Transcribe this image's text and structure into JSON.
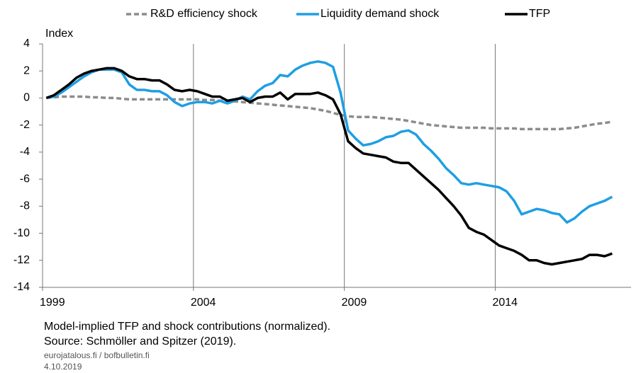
{
  "chart_data": {
    "type": "line",
    "ylabel": "Index",
    "caption": "Model-implied TFP and shock contributions (normalized).",
    "source": "Source: Schmöller and Spitzer (2019).",
    "footer": [
      "eurojatalous.fi / bofbulletin.fi",
      "4.10.2019"
    ],
    "x": [
      1999.125,
      1999.375,
      1999.625,
      1999.875,
      2000.125,
      2000.375,
      2000.625,
      2000.875,
      2001.125,
      2001.375,
      2001.625,
      2001.875,
      2002.125,
      2002.375,
      2002.625,
      2002.875,
      2003.125,
      2003.375,
      2003.625,
      2003.875,
      2004.125,
      2004.375,
      2004.625,
      2004.875,
      2005.125,
      2005.375,
      2005.625,
      2005.875,
      2006.125,
      2006.375,
      2006.625,
      2006.875,
      2007.125,
      2007.375,
      2007.625,
      2007.875,
      2008.125,
      2008.375,
      2008.625,
      2008.875,
      2009.125,
      2009.375,
      2009.625,
      2009.875,
      2010.125,
      2010.375,
      2010.625,
      2010.875,
      2011.125,
      2011.375,
      2011.625,
      2011.875,
      2012.125,
      2012.375,
      2012.625,
      2012.875,
      2013.125,
      2013.375,
      2013.625,
      2013.875,
      2014.125,
      2014.375,
      2014.625,
      2014.875,
      2015.125,
      2015.375,
      2015.625,
      2015.875,
      2016.125,
      2016.375,
      2016.625,
      2016.875,
      2017.125,
      2017.375,
      2017.625,
      2017.875
    ],
    "series": [
      {
        "name": "R&D efficiency shock",
        "color": "#8c8c8c",
        "style": "dashed",
        "values": [
          0,
          0.05,
          0.1,
          0.1,
          0.1,
          0.1,
          0.05,
          0.05,
          0,
          0,
          -0.05,
          -0.1,
          -0.1,
          -0.1,
          -0.1,
          -0.1,
          -0.1,
          -0.1,
          -0.1,
          -0.1,
          -0.1,
          -0.15,
          -0.15,
          -0.2,
          -0.2,
          -0.25,
          -0.3,
          -0.35,
          -0.4,
          -0.45,
          -0.5,
          -0.55,
          -0.6,
          -0.65,
          -0.7,
          -0.75,
          -0.85,
          -0.95,
          -1.1,
          -1.25,
          -1.35,
          -1.4,
          -1.4,
          -1.4,
          -1.45,
          -1.5,
          -1.55,
          -1.6,
          -1.7,
          -1.8,
          -1.9,
          -2.0,
          -2.05,
          -2.1,
          -2.15,
          -2.2,
          -2.2,
          -2.2,
          -2.2,
          -2.25,
          -2.25,
          -2.25,
          -2.25,
          -2.3,
          -2.3,
          -2.3,
          -2.3,
          -2.3,
          -2.3,
          -2.25,
          -2.2,
          -2.1,
          -2.0,
          -1.9,
          -1.85,
          -1.75
        ]
      },
      {
        "name": "Liquidity demand shock",
        "color": "#1e9fe3",
        "style": "solid",
        "values": [
          0,
          0.1,
          0.4,
          0.8,
          1.2,
          1.6,
          1.9,
          2.1,
          2.1,
          2.1,
          1.9,
          1.0,
          0.6,
          0.6,
          0.5,
          0.5,
          0.2,
          -0.3,
          -0.6,
          -0.4,
          -0.3,
          -0.3,
          -0.4,
          -0.2,
          -0.4,
          -0.2,
          0.1,
          -0.1,
          0.5,
          0.9,
          1.1,
          1.7,
          1.6,
          2.1,
          2.4,
          2.6,
          2.7,
          2.6,
          2.3,
          0.4,
          -2.4,
          -3.0,
          -3.5,
          -3.4,
          -3.2,
          -2.9,
          -2.8,
          -2.5,
          -2.4,
          -2.7,
          -3.4,
          -3.9,
          -4.5,
          -5.2,
          -5.7,
          -6.3,
          -6.4,
          -6.3,
          -6.4,
          -6.5,
          -6.6,
          -6.9,
          -7.6,
          -8.6,
          -8.4,
          -8.2,
          -8.3,
          -8.5,
          -8.6,
          -9.2,
          -8.9,
          -8.4,
          -8.0,
          -7.8,
          -7.6,
          -7.3
        ]
      },
      {
        "name": "TFP",
        "color": "#000000",
        "style": "solid",
        "values": [
          0,
          0.2,
          0.6,
          1.0,
          1.5,
          1.8,
          2.0,
          2.1,
          2.2,
          2.2,
          2.0,
          1.6,
          1.4,
          1.4,
          1.3,
          1.3,
          1.0,
          0.6,
          0.5,
          0.6,
          0.5,
          0.3,
          0.1,
          0.1,
          -0.2,
          -0.1,
          0.0,
          -0.3,
          0.0,
          0.1,
          0.1,
          0.4,
          -0.1,
          0.3,
          0.3,
          0.3,
          0.4,
          0.2,
          -0.1,
          -1.2,
          -3.2,
          -3.7,
          -4.1,
          -4.2,
          -4.3,
          -4.4,
          -4.7,
          -4.8,
          -4.8,
          -5.3,
          -5.8,
          -6.3,
          -6.8,
          -7.4,
          -8.0,
          -8.7,
          -9.6,
          -9.9,
          -10.1,
          -10.5,
          -10.9,
          -11.1,
          -11.3,
          -11.6,
          -12.0,
          -12.0,
          -12.2,
          -12.3,
          -12.2,
          -12.1,
          -12.0,
          -11.9,
          -11.6,
          -11.6,
          -11.7,
          -11.5
        ]
      }
    ],
    "xlim": [
      1999,
      2018.5
    ],
    "xticks": [
      1999,
      2004,
      2009,
      2014
    ],
    "ylim": [
      -14,
      4
    ],
    "yticks": [
      4,
      2,
      0,
      -2,
      -4,
      -6,
      -8,
      -10,
      -12,
      -14
    ],
    "grid": "x"
  }
}
